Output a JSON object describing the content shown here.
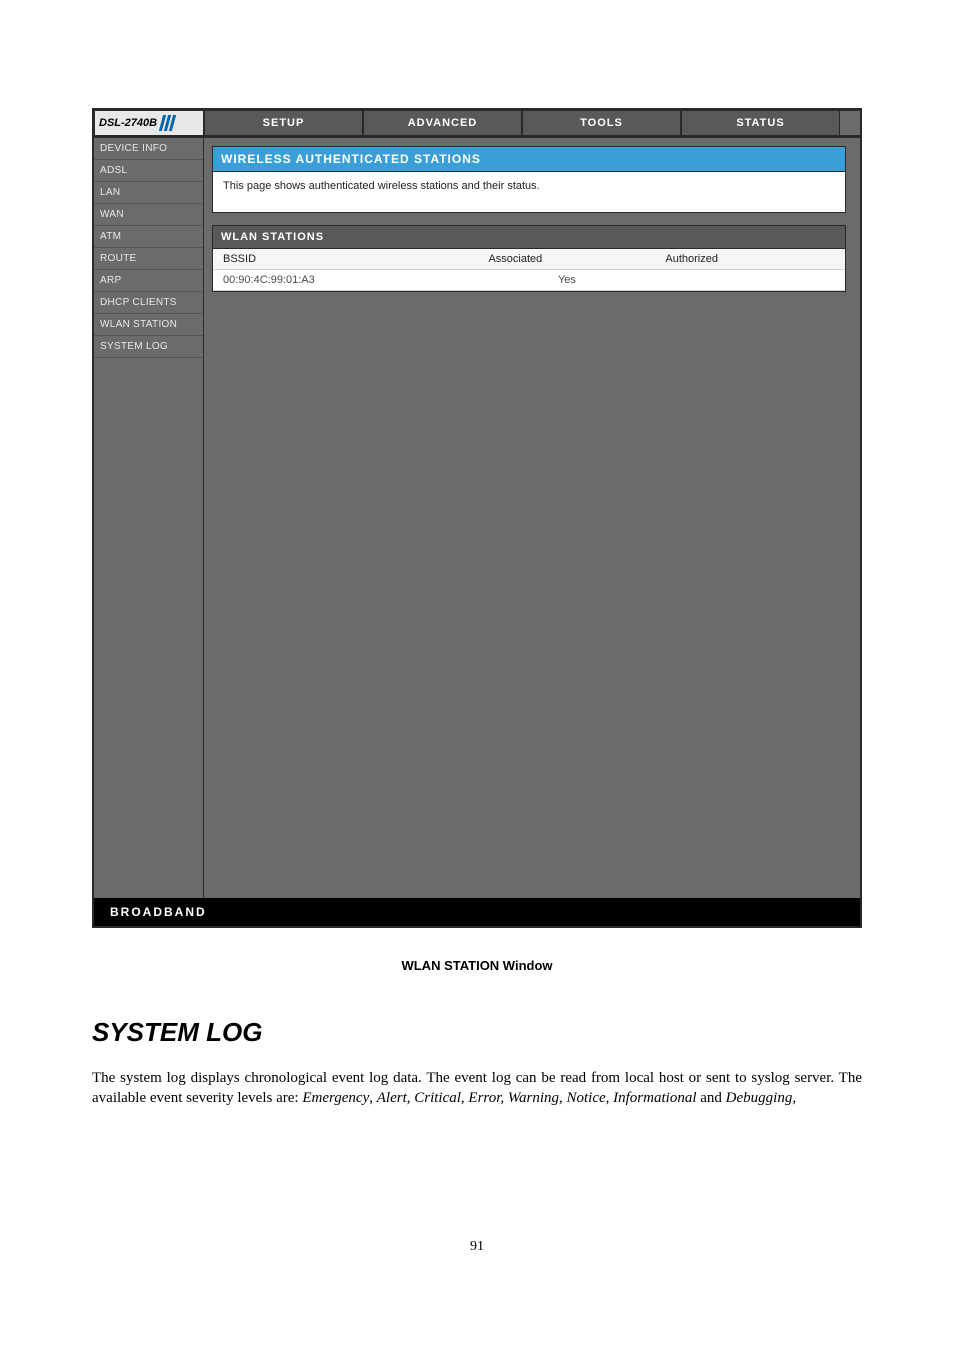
{
  "logo": {
    "model": "DSL-2740B"
  },
  "tabs": [
    {
      "label": "SETUP"
    },
    {
      "label": "ADVANCED"
    },
    {
      "label": "TOOLS"
    },
    {
      "label": "STATUS"
    }
  ],
  "sidebar": {
    "items": [
      {
        "label": "DEVICE INFO"
      },
      {
        "label": "ADSL"
      },
      {
        "label": "LAN"
      },
      {
        "label": "WAN"
      },
      {
        "label": "ATM"
      },
      {
        "label": "ROUTE"
      },
      {
        "label": "ARP"
      },
      {
        "label": "DHCP CLIENTS"
      },
      {
        "label": "WLAN STATION"
      },
      {
        "label": "SYSTEM LOG"
      }
    ]
  },
  "panel": {
    "title": "WIRELESS AUTHENTICATED STATIONS",
    "desc": "This page shows authenticated wireless stations and their status."
  },
  "section": {
    "title": "WLAN STATIONS",
    "columns": {
      "bssid": "BSSID",
      "assoc": "Associated",
      "auth": "Authorized"
    },
    "rows": [
      {
        "bssid": "00:90:4C:99:01:A3",
        "assoc": "Yes",
        "auth": ""
      }
    ]
  },
  "footer": {
    "brand": "BROADBAND"
  },
  "caption": "WLAN STATION Window",
  "doc": {
    "heading": "SYSTEM LOG",
    "para_a": "The system log displays chronological event log data. The event log can be read from local host or sent to syslog server. The available event severity levels are: ",
    "lv_emergency": "Emergency",
    "sep1": ", ",
    "lv_rest": "Alert, Critical, Error, Warning, Notice, Informational",
    "sep2": " and ",
    "lv_debug": "Debugging,"
  },
  "page_number": "91",
  "colors": {
    "tab_bg": "#595959",
    "frame_bg": "#6b6b6b",
    "accent": "#3a9fd6",
    "border": "#2a2a2a"
  }
}
